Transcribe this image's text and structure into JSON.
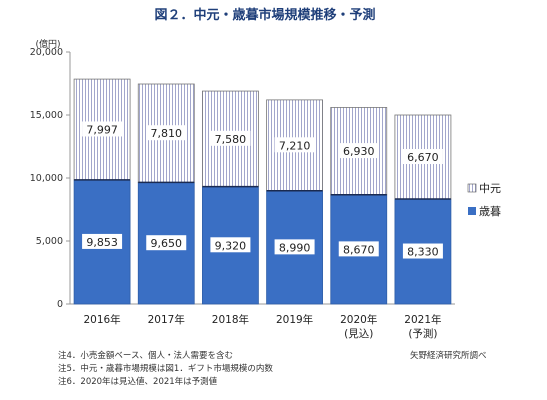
{
  "chart_data": {
    "type": "bar",
    "stacked": true,
    "title": "図２．中元・歳暮市場規模推移・予測",
    "unit_label": "(億円)",
    "categories": [
      "2016年",
      "2017年",
      "2018年",
      "2019年",
      "2020年\n(見込)",
      "2021年\n(予測)"
    ],
    "series": [
      {
        "name": "歳暮",
        "color": "#3a6fc4",
        "values": [
          9853,
          9650,
          9320,
          8990,
          8670,
          8330
        ],
        "labels": [
          "9,853",
          "9,650",
          "9,320",
          "8,990",
          "8,670",
          "8,330"
        ]
      },
      {
        "name": "中元",
        "color": "#ffffff",
        "pattern": "vertical-lines",
        "values": [
          7997,
          7810,
          7580,
          7210,
          6930,
          6670
        ],
        "labels": [
          "7,997",
          "7,810",
          "7,580",
          "7,210",
          "6,930",
          "6,670"
        ]
      }
    ],
    "ylim": [
      0,
      20000
    ],
    "yticks": [
      0,
      5000,
      10000,
      15000,
      20000
    ],
    "ytick_labels": [
      "0",
      "5,000",
      "10,000",
      "15,000",
      "20,000"
    ],
    "grid": false,
    "legend_position": "right",
    "legend_order": [
      "中元",
      "歳暮"
    ]
  },
  "notes": [
    "注4．小売金額ベース、個人・法人需要を含む",
    "注5．中元・歳暮市場規模は図1．ギフト市場規模の内数",
    "注6．2020年は見込値、2021年は予測値"
  ],
  "source": "矢野経済研究所調べ"
}
